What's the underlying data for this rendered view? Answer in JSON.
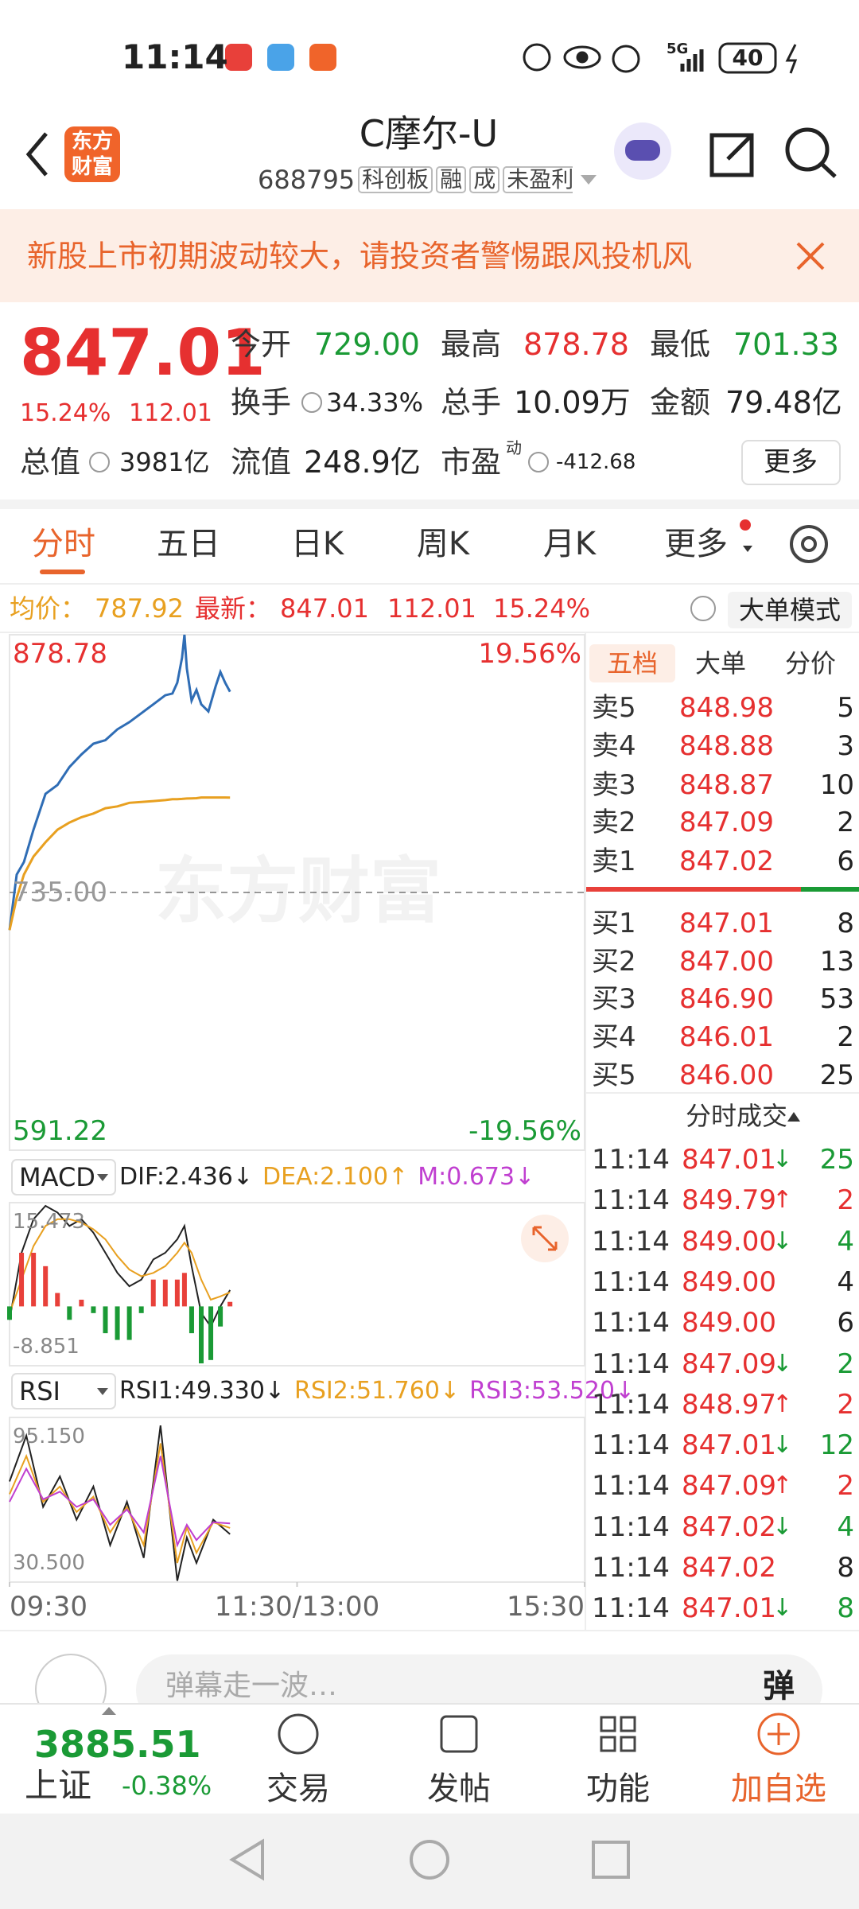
{
  "status_bar": {
    "time": "11:14",
    "network": "5G",
    "battery": "40"
  },
  "header": {
    "logo": [
      "东方",
      "财富"
    ],
    "title": "C摩尔-U",
    "code": "688795",
    "tags": [
      "科创板",
      "融",
      "成",
      "未盈利"
    ]
  },
  "banner": {
    "text": "新股上市初期波动较大，请投资者警惕跟风投机风"
  },
  "quote": {
    "price": "847.01",
    "change_pct": "15.24%",
    "change": "112.01",
    "fields": [
      {
        "label": "今开",
        "value": "729.00"
      },
      {
        "label": "最高",
        "value": "878.78"
      },
      {
        "label": "最低",
        "value": "701.33"
      },
      {
        "label": "换手",
        "value": "34.33%"
      },
      {
        "label": "总手",
        "value": "10.09万"
      },
      {
        "label": "金额",
        "value": "79.48亿"
      },
      {
        "label": "总值",
        "value": "3981亿"
      },
      {
        "label": "流值",
        "value": "248.9亿"
      },
      {
        "label": "市盈",
        "value": "-412.68",
        "superscript": "动"
      }
    ],
    "more": "更多"
  },
  "tabs": [
    "分时",
    "五日",
    "日K",
    "周K",
    "月K",
    "更多"
  ],
  "info_bar": {
    "avg_label": "均价：",
    "avg": "787.92",
    "last_label": "最新：",
    "last": "847.01",
    "change": "112.01",
    "change_pct": "15.24%",
    "mode_button": "大单模式"
  },
  "watermark": "东方财富",
  "chart_data": [
    {
      "type": "line",
      "x": [
        0,
        3,
        6,
        10,
        15,
        20,
        25,
        30,
        35,
        40,
        45,
        50,
        55,
        60,
        65,
        68,
        70,
        72,
        73,
        74,
        76,
        78,
        80,
        83,
        86,
        88,
        90,
        92
      ],
      "series": [
        {
          "color": "#2f6db5",
          "values": [
            714,
            745,
            752,
            770,
            790,
            795,
            805,
            812,
            818,
            820,
            826,
            830,
            835,
            840,
            845,
            846,
            852,
            866,
            878.78,
            860,
            842,
            848,
            840,
            836,
            850,
            858,
            852,
            847.01
          ]
        },
        {
          "color": "#e8a020",
          "values": [
            714,
            732,
            745,
            755,
            763,
            770,
            774,
            777,
            779,
            782,
            783,
            785,
            785.5,
            786,
            786.5,
            787,
            787,
            787.2,
            787.3,
            787.4,
            787.5,
            787.6,
            788,
            788,
            788,
            788,
            788,
            787.92
          ]
        }
      ],
      "xlim": [
        0,
        240
      ],
      "ylim": [
        591.22,
        878.78
      ],
      "yticks": [
        878.78,
        {
          "value": 735,
          "label": "735.00"
        },
        591.22
      ],
      "y2lim": [
        -19.56,
        19.56
      ],
      "y2ticks": [
        {
          "value": 19.56,
          "label": "19.56%"
        },
        {
          "value": -19.56,
          "label": "-19.56%"
        }
      ]
    },
    {
      "type": "line",
      "indicator": "MACD",
      "x": [
        0,
        5,
        10,
        15,
        20,
        25,
        30,
        35,
        40,
        45,
        50,
        55,
        60,
        65,
        70,
        73,
        76,
        80,
        84,
        88,
        92
      ],
      "series": [
        {
          "name": "DIF:2.436↓",
          "color": "#222222",
          "values": [
            -2,
            8,
            13,
            15,
            14,
            12,
            13,
            11,
            8,
            5,
            3,
            4,
            7,
            8,
            10,
            12,
            6,
            -1,
            -3,
            0,
            2.436
          ]
        },
        {
          "name": "DEA:2.100↑",
          "color": "#e8a020",
          "values": [
            -1,
            4,
            9,
            12,
            13,
            13,
            12.5,
            11.5,
            10,
            7.5,
            5.5,
            4.5,
            5,
            6,
            8,
            9.5,
            8,
            4,
            1,
            1.5,
            2.1
          ]
        },
        {
          "name": "M:0.673↓",
          "type": "bar",
          "color": "#c03fd0",
          "values": [
            -2,
            8,
            8,
            6,
            2,
            -2,
            1,
            -1,
            -4,
            -5,
            -5,
            -1,
            4,
            4,
            4,
            5,
            -4,
            -8.5,
            -8,
            -3,
            0.673
          ]
        }
      ],
      "up_color": "#e8403a",
      "down_color": "#1a9a35",
      "xlim": [
        0,
        240
      ],
      "ylim": [
        -8.851,
        15.473
      ],
      "yticks": [
        15.473,
        -8.851
      ]
    },
    {
      "type": "line",
      "indicator": "RSI",
      "x": [
        0,
        7,
        14,
        21,
        28,
        35,
        42,
        49,
        56,
        63,
        70,
        74,
        78,
        85,
        92
      ],
      "series": [
        {
          "name": "RSI1:49.330↓",
          "color": "#222222",
          "values": [
            70,
            88,
            60,
            72,
            55,
            68,
            45,
            62,
            40,
            92,
            31,
            48,
            38,
            55,
            49.33
          ]
        },
        {
          "name": "RSI2:51.760↓",
          "color": "#e8a020",
          "values": [
            65,
            80,
            62,
            68,
            58,
            64,
            50,
            60,
            45,
            85,
            38,
            52,
            42,
            54,
            51.76
          ]
        },
        {
          "name": "RSI3:53.520↓",
          "color": "#c03fd0",
          "values": [
            62,
            75,
            63,
            66,
            60,
            63,
            53,
            59,
            50,
            80,
            45,
            53,
            47,
            54,
            53.52
          ]
        }
      ],
      "xlim": [
        0,
        240
      ],
      "ylim": [
        30.5,
        95.15
      ],
      "yticks": [
        {
          "value": 95.15,
          "label": "95.150"
        },
        {
          "value": 30.5,
          "label": "30.500"
        }
      ],
      "xticks": [
        {
          "value": 0,
          "label": "09:30"
        },
        {
          "value": 120,
          "label": "11:30/13:00"
        },
        {
          "value": 240,
          "label": "15:30"
        }
      ]
    }
  ],
  "order_book": {
    "tabs": [
      "五档",
      "大单",
      "分价"
    ],
    "asks": [
      {
        "label": "卖5",
        "price": "848.98",
        "volume": "5"
      },
      {
        "label": "卖4",
        "price": "848.88",
        "volume": "3"
      },
      {
        "label": "卖3",
        "price": "848.87",
        "volume": "10"
      },
      {
        "label": "卖2",
        "price": "847.09",
        "volume": "2"
      },
      {
        "label": "卖1",
        "price": "847.02",
        "volume": "6"
      }
    ],
    "bids": [
      {
        "label": "买1",
        "price": "847.01",
        "volume": "8"
      },
      {
        "label": "买2",
        "price": "847.00",
        "volume": "13"
      },
      {
        "label": "买3",
        "price": "846.90",
        "volume": "53"
      },
      {
        "label": "买4",
        "price": "846.01",
        "volume": "2"
      },
      {
        "label": "买5",
        "price": "846.00",
        "volume": "25"
      }
    ]
  },
  "trades": {
    "title": "分时成交",
    "rows": [
      {
        "time": "11:14",
        "price": "847.01",
        "arrow": "↓",
        "volume": "25"
      },
      {
        "time": "11:14",
        "price": "849.79",
        "arrow": "↑",
        "volume": "2"
      },
      {
        "time": "11:14",
        "price": "849.00",
        "arrow": "↓",
        "volume": "4"
      },
      {
        "time": "11:14",
        "price": "849.00",
        "volume": "4"
      },
      {
        "time": "11:14",
        "price": "849.00",
        "volume": "6"
      },
      {
        "time": "11:14",
        "price": "847.09",
        "arrow": "↓",
        "volume": "2"
      },
      {
        "time": "11:14",
        "price": "848.97",
        "arrow": "↑",
        "volume": "2"
      },
      {
        "time": "11:14",
        "price": "847.01",
        "arrow": "↓",
        "volume": "12"
      },
      {
        "time": "11:14",
        "price": "847.09",
        "arrow": "↑",
        "volume": "2"
      },
      {
        "time": "11:14",
        "price": "847.02",
        "arrow": "↓",
        "volume": "4"
      },
      {
        "time": "11:14",
        "price": "847.02",
        "volume": "8"
      },
      {
        "time": "11:14",
        "price": "847.01",
        "arrow": "↓",
        "volume": "8"
      }
    ]
  },
  "comment_bar": {
    "placeholder": "弹幕走一波…",
    "button": "弹"
  },
  "bottom_nav": {
    "index_value": "3885.51",
    "index_name": "上证",
    "index_change": "-0.38%",
    "items": [
      "交易",
      "发帖",
      "功能",
      "加自选"
    ]
  }
}
